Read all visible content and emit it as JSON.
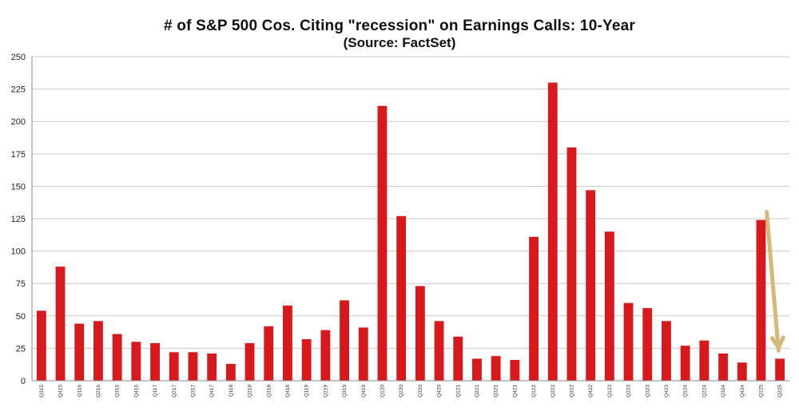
{
  "chart_data": {
    "type": "bar",
    "title": "# of S&P 500 Cos. Citing \"recession\" on Earnings Calls: 10-Year",
    "subtitle": "(Source: FactSet)",
    "xlabel": "",
    "ylabel": "",
    "ylim": [
      0,
      250
    ],
    "yticks": [
      0,
      25,
      50,
      75,
      100,
      125,
      150,
      175,
      200,
      225,
      250
    ],
    "grid": true,
    "legend": "none",
    "categories": [
      "Q315",
      "Q415",
      "Q116",
      "Q216",
      "Q316",
      "Q416",
      "Q117",
      "Q217",
      "Q317",
      "Q417",
      "Q118",
      "Q218",
      "Q318",
      "Q418",
      "Q119",
      "Q219",
      "Q319",
      "Q419",
      "Q120",
      "Q220",
      "Q320",
      "Q420",
      "Q121",
      "Q221",
      "Q321",
      "Q421",
      "Q122",
      "Q222",
      "Q322",
      "Q422",
      "Q123",
      "Q223",
      "Q323",
      "Q423",
      "Q124",
      "Q224",
      "Q324",
      "Q424",
      "Q125",
      "Q225"
    ],
    "values": [
      54,
      88,
      44,
      46,
      36,
      30,
      29,
      22,
      22,
      21,
      13,
      29,
      42,
      58,
      32,
      39,
      62,
      41,
      212,
      127,
      73,
      46,
      34,
      17,
      19,
      16,
      111,
      230,
      180,
      147,
      115,
      60,
      56,
      46,
      27,
      31,
      21,
      14,
      124,
      17
    ],
    "bar_color": "#d7191c",
    "annotation": {
      "type": "arrow",
      "color": "#d7b877",
      "from_category": "Q125",
      "to_category": "Q225"
    }
  }
}
